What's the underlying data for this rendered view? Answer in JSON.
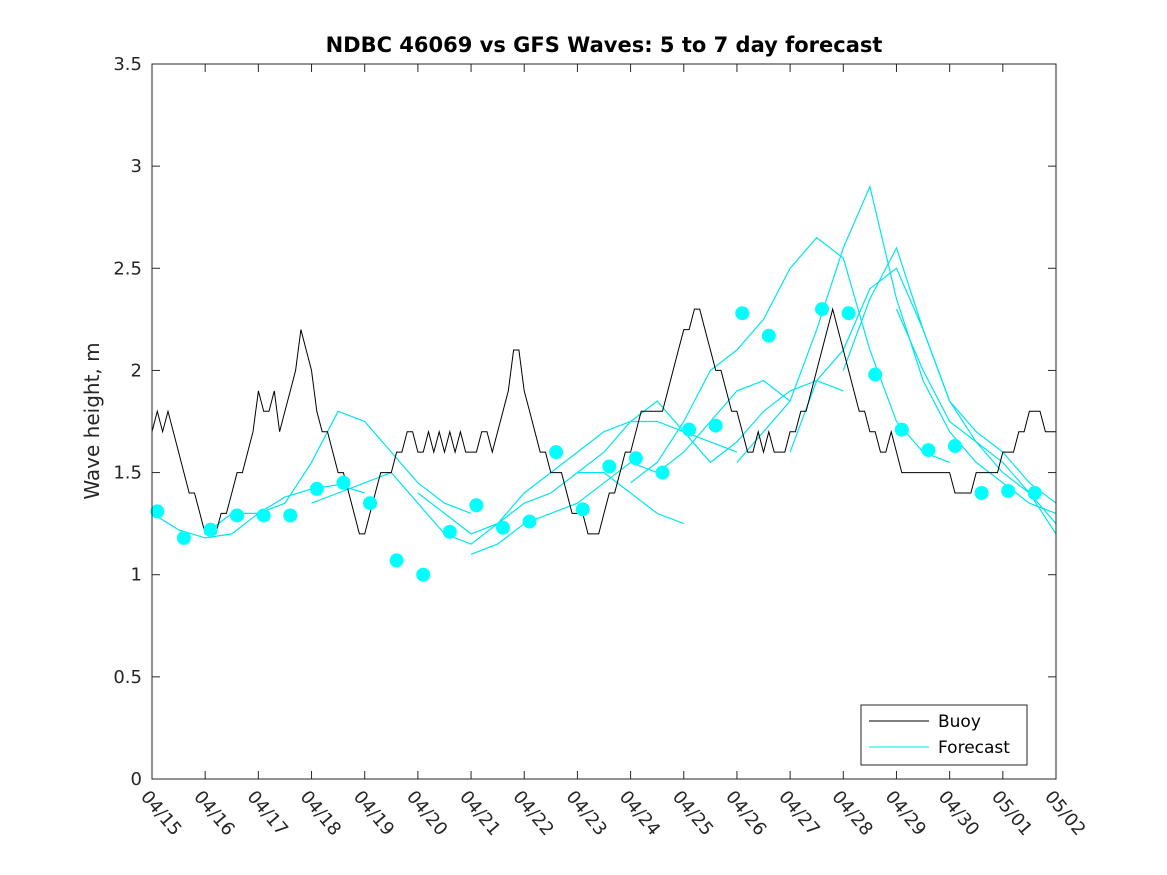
{
  "chart_data": {
    "type": "line",
    "title": "NDBC 46069 vs GFS Waves: 5 to 7 day forecast",
    "xlabel": "",
    "ylabel": "Wave height, m",
    "xlim": [
      0,
      17
    ],
    "ylim": [
      0,
      3.5
    ],
    "x_ticks": [
      "04/15",
      "04/16",
      "04/17",
      "04/18",
      "04/19",
      "04/20",
      "04/21",
      "04/22",
      "04/23",
      "04/24",
      "04/25",
      "04/26",
      "04/27",
      "04/28",
      "04/29",
      "04/30",
      "05/01",
      "05/02"
    ],
    "y_ticks": [
      0,
      0.5,
      1,
      1.5,
      2,
      2.5,
      3,
      3.5
    ],
    "y_tick_labels": [
      "0",
      "0.5",
      "1",
      "1.5",
      "2",
      "2.5",
      "3",
      "3.5"
    ],
    "legend": {
      "position": "bottom-right",
      "entries": [
        "Buoy",
        "Forecast"
      ]
    },
    "colors": {
      "buoy": "#000000",
      "forecast": "#00e5ee",
      "markers": "#00ffff"
    },
    "series": [
      {
        "name": "Buoy",
        "x": [
          0,
          0.1,
          0.2,
          0.3,
          0.4,
          0.5,
          0.6,
          0.7,
          0.8,
          0.9,
          1.0,
          1.1,
          1.2,
          1.3,
          1.4,
          1.5,
          1.6,
          1.7,
          1.8,
          1.9,
          2.0,
          2.1,
          2.2,
          2.3,
          2.4,
          2.5,
          2.6,
          2.7,
          2.8,
          2.9,
          3.0,
          3.1,
          3.2,
          3.3,
          3.4,
          3.5,
          3.6,
          3.7,
          3.8,
          3.9,
          4.0,
          4.1,
          4.2,
          4.3,
          4.4,
          4.5,
          4.6,
          4.7,
          4.8,
          4.9,
          5.0,
          5.1,
          5.2,
          5.3,
          5.4,
          5.5,
          5.6,
          5.7,
          5.8,
          5.9,
          6.0,
          6.1,
          6.2,
          6.3,
          6.4,
          6.5,
          6.6,
          6.7,
          6.8,
          6.9,
          7.0,
          7.1,
          7.2,
          7.3,
          7.4,
          7.5,
          7.6,
          7.7,
          7.8,
          7.9,
          8.0,
          8.1,
          8.2,
          8.3,
          8.4,
          8.5,
          8.6,
          8.7,
          8.8,
          8.9,
          9.0,
          9.1,
          9.2,
          9.3,
          9.4,
          9.5,
          9.6,
          9.7,
          9.8,
          9.9,
          10.0,
          10.1,
          10.2,
          10.3,
          10.4,
          10.5,
          10.6,
          10.7,
          10.8,
          10.9,
          11.0,
          11.1,
          11.2,
          11.3,
          11.4,
          11.5,
          11.6,
          11.7,
          11.8,
          11.9,
          12.0,
          12.1,
          12.2,
          12.3,
          12.4,
          12.5,
          12.6,
          12.7,
          12.8,
          12.9,
          13.0,
          13.1,
          13.2,
          13.3,
          13.4,
          13.5,
          13.6,
          13.7,
          13.8,
          13.9,
          14.0,
          14.1,
          14.2,
          14.3,
          14.4,
          14.5,
          14.6,
          14.7,
          14.8,
          14.9,
          15.0,
          15.1,
          15.2,
          15.3,
          15.4,
          15.5,
          15.6,
          15.7,
          15.8,
          15.9,
          16.0,
          16.1,
          16.2,
          16.3,
          16.4,
          16.5,
          16.6,
          16.7,
          16.8,
          16.9,
          17.0
        ],
        "values": [
          1.7,
          1.8,
          1.7,
          1.8,
          1.7,
          1.6,
          1.5,
          1.4,
          1.4,
          1.3,
          1.2,
          1.2,
          1.2,
          1.3,
          1.3,
          1.4,
          1.5,
          1.5,
          1.6,
          1.7,
          1.9,
          1.8,
          1.8,
          1.9,
          1.7,
          1.8,
          1.9,
          2.0,
          2.2,
          2.1,
          2.0,
          1.8,
          1.7,
          1.7,
          1.6,
          1.5,
          1.5,
          1.4,
          1.3,
          1.2,
          1.2,
          1.3,
          1.4,
          1.5,
          1.5,
          1.5,
          1.6,
          1.6,
          1.7,
          1.7,
          1.6,
          1.6,
          1.7,
          1.6,
          1.7,
          1.6,
          1.7,
          1.6,
          1.7,
          1.6,
          1.6,
          1.6,
          1.7,
          1.7,
          1.6,
          1.7,
          1.8,
          1.9,
          2.1,
          2.1,
          1.9,
          1.8,
          1.7,
          1.6,
          1.6,
          1.5,
          1.5,
          1.5,
          1.4,
          1.3,
          1.3,
          1.3,
          1.2,
          1.2,
          1.2,
          1.3,
          1.4,
          1.4,
          1.5,
          1.6,
          1.6,
          1.7,
          1.8,
          1.8,
          1.8,
          1.8,
          1.8,
          1.9,
          2.0,
          2.1,
          2.2,
          2.2,
          2.3,
          2.3,
          2.2,
          2.1,
          2.0,
          2.0,
          1.9,
          1.8,
          1.8,
          1.7,
          1.6,
          1.6,
          1.7,
          1.6,
          1.7,
          1.6,
          1.6,
          1.6,
          1.7,
          1.7,
          1.8,
          1.8,
          1.9,
          2.0,
          2.1,
          2.2,
          2.3,
          2.2,
          2.1,
          2.0,
          1.9,
          1.8,
          1.8,
          1.7,
          1.7,
          1.6,
          1.6,
          1.7,
          1.6,
          1.5,
          1.5,
          1.5,
          1.5,
          1.5,
          1.5,
          1.5,
          1.5,
          1.5,
          1.5,
          1.4,
          1.4,
          1.4,
          1.4,
          1.5,
          1.5,
          1.5,
          1.5,
          1.5,
          1.6,
          1.6,
          1.6,
          1.7,
          1.7,
          1.8,
          1.8,
          1.8,
          1.7,
          1.7,
          1.7
        ]
      },
      {
        "name": "Forecast",
        "segments": [
          {
            "x": [
              0.0,
              0.5,
              1.0,
              1.5,
              2.0,
              2.5,
              3.0,
              3.5,
              4.0
            ],
            "values": [
              1.3,
              1.22,
              1.18,
              1.2,
              1.3,
              1.38,
              1.42,
              1.44,
              1.4
            ]
          },
          {
            "x": [
              1.0,
              1.5,
              2.0,
              2.5,
              3.0,
              3.5,
              4.0,
              4.5,
              5.0,
              5.5,
              6.0
            ],
            "values": [
              1.2,
              1.3,
              1.3,
              1.35,
              1.55,
              1.8,
              1.75,
              1.6,
              1.45,
              1.35,
              1.3
            ]
          },
          {
            "x": [
              3.0,
              3.5,
              4.0,
              4.5,
              5.0,
              5.5,
              6.0,
              6.5,
              7.0,
              7.5,
              8.0,
              8.5,
              9.0,
              9.5,
              10.0
            ],
            "values": [
              1.35,
              1.4,
              1.45,
              1.5,
              1.35,
              1.2,
              1.15,
              1.25,
              1.35,
              1.4,
              1.5,
              1.5,
              1.4,
              1.3,
              1.25
            ]
          },
          {
            "x": [
              5.0,
              5.5,
              6.0,
              6.5,
              7.0,
              7.5,
              8.0,
              8.5,
              9.0,
              9.5,
              10.0,
              10.5,
              11.0
            ],
            "values": [
              1.4,
              1.3,
              1.2,
              1.25,
              1.4,
              1.5,
              1.6,
              1.7,
              1.75,
              1.75,
              1.7,
              1.65,
              1.6
            ]
          },
          {
            "x": [
              6.0,
              6.5,
              7.0,
              7.5,
              8.0,
              8.5,
              9.0,
              9.5,
              10.0,
              10.5,
              11.0,
              11.5,
              12.0
            ],
            "values": [
              1.1,
              1.15,
              1.25,
              1.3,
              1.35,
              1.45,
              1.55,
              1.5,
              1.6,
              1.75,
              1.9,
              1.95,
              1.85
            ]
          },
          {
            "x": [
              8.0,
              8.5,
              9.0,
              9.5,
              10.0,
              10.5,
              11.0,
              11.5,
              12.0,
              12.5,
              13.0
            ],
            "values": [
              1.5,
              1.6,
              1.75,
              1.85,
              1.7,
              1.55,
              1.65,
              1.8,
              1.9,
              1.95,
              1.9
            ]
          },
          {
            "x": [
              9.0,
              9.5,
              10.0,
              10.5,
              11.0,
              11.5,
              12.0,
              12.5,
              13.0,
              13.5,
              14.0,
              14.5,
              15.0
            ],
            "values": [
              1.45,
              1.55,
              1.75,
              2.0,
              2.1,
              2.25,
              2.5,
              2.65,
              2.55,
              2.1,
              1.75,
              1.6,
              1.55
            ]
          },
          {
            "x": [
              11.0,
              11.5,
              12.0,
              12.5,
              13.0,
              13.5,
              14.0,
              14.5,
              15.0,
              15.5,
              16.0,
              16.5,
              17.0
            ],
            "values": [
              1.55,
              1.7,
              1.85,
              2.2,
              2.6,
              2.9,
              2.35,
              1.95,
              1.7,
              1.55,
              1.45,
              1.35,
              1.3
            ]
          },
          {
            "x": [
              12.0,
              12.5,
              13.0,
              13.5,
              14.0,
              14.5,
              15.0,
              15.5,
              16.0,
              16.5,
              17.0
            ],
            "values": [
              1.6,
              1.95,
              2.1,
              2.4,
              2.5,
              2.2,
              1.85,
              1.65,
              1.5,
              1.4,
              1.25
            ]
          },
          {
            "x": [
              13.0,
              13.5,
              14.0,
              14.5,
              15.0,
              15.5,
              16.0,
              16.5,
              17.0
            ],
            "values": [
              2.0,
              2.35,
              2.6,
              2.2,
              1.85,
              1.7,
              1.6,
              1.45,
              1.35
            ]
          },
          {
            "x": [
              14.0,
              14.5,
              15.0,
              15.5,
              16.0,
              16.5,
              17.0
            ],
            "values": [
              2.3,
              2.0,
              1.75,
              1.65,
              1.55,
              1.4,
              1.2
            ]
          }
        ]
      },
      {
        "name": "Forecast markers",
        "x": [
          0.1,
          0.6,
          1.1,
          1.6,
          2.1,
          2.6,
          3.1,
          3.6,
          4.1,
          4.6,
          5.1,
          5.6,
          6.1,
          6.6,
          7.1,
          7.6,
          8.1,
          8.6,
          9.1,
          9.6,
          10.1,
          10.6,
          11.1,
          11.6,
          12.6,
          13.1,
          13.6,
          14.1,
          14.6,
          15.1,
          15.6,
          16.1,
          16.6
        ],
        "values": [
          1.31,
          1.18,
          1.22,
          1.29,
          1.29,
          1.29,
          1.42,
          1.45,
          1.35,
          1.07,
          1.0,
          1.21,
          1.34,
          1.23,
          1.26,
          1.6,
          1.32,
          1.53,
          1.57,
          1.5,
          1.71,
          1.73,
          2.28,
          2.17,
          2.3,
          2.28,
          1.98,
          1.71,
          1.61,
          1.63,
          1.4,
          1.41,
          1.4
        ]
      }
    ]
  }
}
